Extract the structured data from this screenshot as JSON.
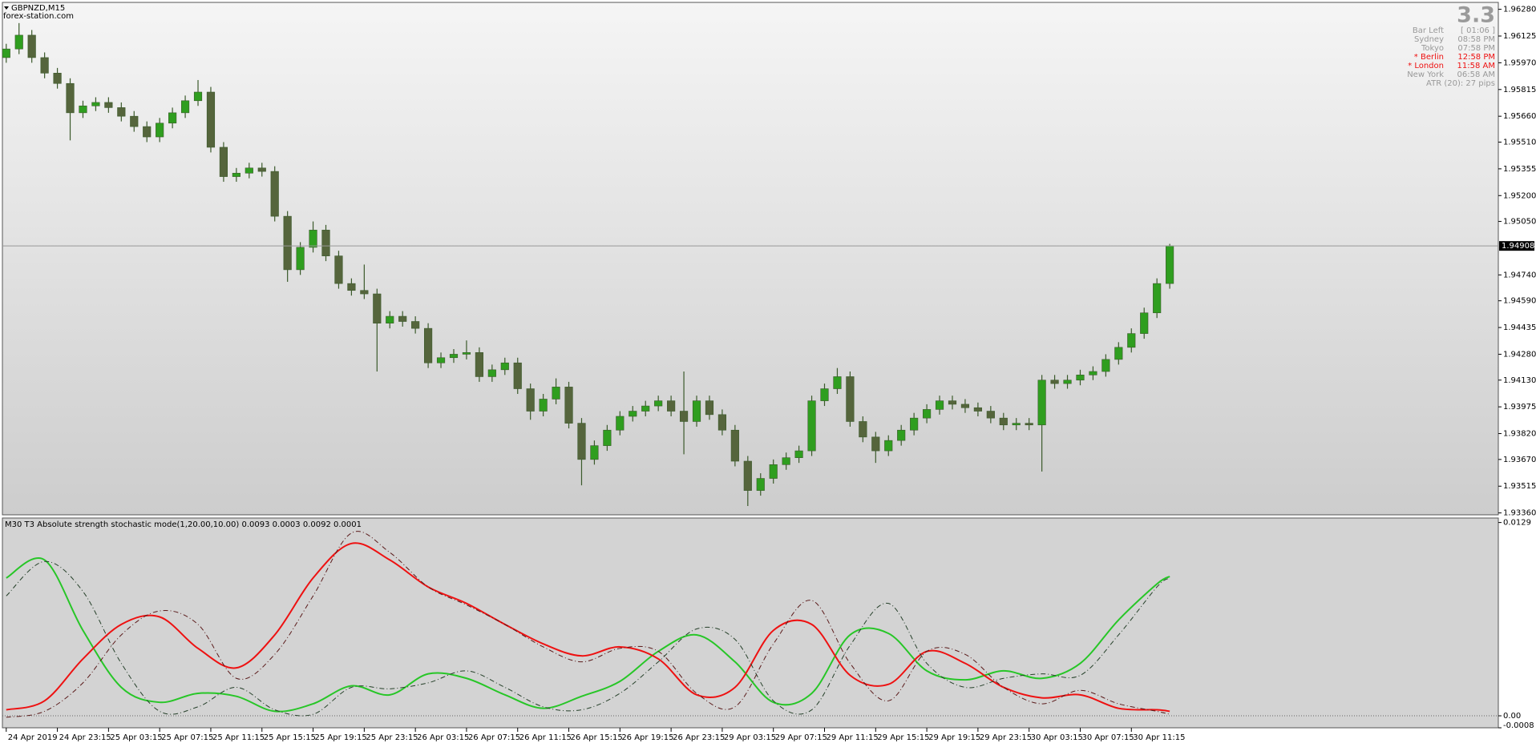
{
  "chart_data": [
    {
      "type": "candlestick",
      "title": "GBPNZD,M15",
      "subtitle": "forex-station.com",
      "open": [
        1.96,
        1.9605,
        1.9613,
        1.96,
        1.9591,
        1.9585,
        1.9568,
        1.9572,
        1.9574,
        1.9571,
        1.9566,
        1.956,
        1.9554,
        1.9562,
        1.9568,
        1.9575,
        1.958,
        1.9548,
        1.9531,
        1.9533,
        1.9536,
        1.9534,
        1.9508,
        1.9477,
        1.949,
        1.95,
        1.9485,
        1.9469,
        1.9465,
        1.9463,
        1.9446,
        1.945,
        1.9447,
        1.9443,
        1.9423,
        1.9426,
        1.9428,
        1.9429,
        1.9415,
        1.9419,
        1.9423,
        1.9408,
        1.9395,
        1.9402,
        1.9409,
        1.9388,
        1.9367,
        1.9375,
        1.9384,
        1.9392,
        1.9395,
        1.9398,
        1.9401,
        1.9395,
        1.9389,
        1.9401,
        1.9393,
        1.9384,
        1.9366,
        1.9349,
        1.9356,
        1.9364,
        1.9368,
        1.9372,
        1.9401,
        1.9408,
        1.9415,
        1.9389,
        1.938,
        1.9372,
        1.9378,
        1.9384,
        1.9391,
        1.9396,
        1.9401,
        1.9399,
        1.9397,
        1.9395,
        1.9391,
        1.9387,
        1.9388,
        1.9387,
        1.9413,
        1.9411,
        1.9413,
        1.9416,
        1.9418,
        1.9425,
        1.9432,
        1.944,
        1.9452,
        1.9469
      ],
      "high": [
        1.9608,
        1.962,
        1.9616,
        1.9603,
        1.9594,
        1.9588,
        1.9575,
        1.9577,
        1.9577,
        1.9574,
        1.9569,
        1.9563,
        1.9565,
        1.9571,
        1.9578,
        1.9587,
        1.9583,
        1.9551,
        1.9536,
        1.9539,
        1.9539,
        1.9537,
        1.9511,
        1.9493,
        1.9505,
        1.9503,
        1.9488,
        1.9472,
        1.948,
        1.9466,
        1.9453,
        1.9453,
        1.945,
        1.9446,
        1.9429,
        1.9431,
        1.9436,
        1.9432,
        1.9422,
        1.9426,
        1.9426,
        1.9411,
        1.9405,
        1.9414,
        1.9412,
        1.9391,
        1.9378,
        1.9387,
        1.9395,
        1.9398,
        1.9401,
        1.9404,
        1.9404,
        1.9418,
        1.9404,
        1.9404,
        1.9396,
        1.9387,
        1.9369,
        1.9359,
        1.9367,
        1.9371,
        1.9375,
        1.9404,
        1.9411,
        1.942,
        1.9418,
        1.9392,
        1.9383,
        1.9381,
        1.9387,
        1.9394,
        1.9399,
        1.9404,
        1.9404,
        1.9402,
        1.94,
        1.9398,
        1.9394,
        1.9391,
        1.9391,
        1.9416,
        1.9416,
        1.9416,
        1.9419,
        1.9421,
        1.9428,
        1.9435,
        1.9443,
        1.9455,
        1.9472,
        1.9492
      ],
      "low": [
        1.9597,
        1.9602,
        1.9597,
        1.9588,
        1.9582,
        1.9552,
        1.9565,
        1.9569,
        1.9568,
        1.9563,
        1.9557,
        1.9551,
        1.9551,
        1.9559,
        1.9565,
        1.9572,
        1.9545,
        1.9528,
        1.9528,
        1.953,
        1.9531,
        1.9505,
        1.947,
        1.9474,
        1.9487,
        1.9482,
        1.9466,
        1.9462,
        1.946,
        1.9418,
        1.9443,
        1.9444,
        1.944,
        1.942,
        1.942,
        1.9423,
        1.9425,
        1.9412,
        1.9412,
        1.9416,
        1.9405,
        1.939,
        1.9392,
        1.9399,
        1.9385,
        1.9352,
        1.9364,
        1.9372,
        1.9381,
        1.9389,
        1.9392,
        1.9395,
        1.9392,
        1.937,
        1.9386,
        1.939,
        1.9381,
        1.9363,
        1.934,
        1.9346,
        1.9353,
        1.9361,
        1.9365,
        1.9369,
        1.9398,
        1.9405,
        1.9386,
        1.9377,
        1.9365,
        1.9369,
        1.9375,
        1.9381,
        1.9388,
        1.9393,
        1.9396,
        1.9394,
        1.9392,
        1.9388,
        1.9384,
        1.9384,
        1.9384,
        1.936,
        1.9408,
        1.9408,
        1.941,
        1.9413,
        1.9415,
        1.9422,
        1.9429,
        1.9437,
        1.9449,
        1.9466
      ],
      "close": [
        1.9605,
        1.9613,
        1.96,
        1.9591,
        1.9585,
        1.9568,
        1.9572,
        1.9574,
        1.9571,
        1.9566,
        1.956,
        1.9554,
        1.9562,
        1.9568,
        1.9575,
        1.958,
        1.9548,
        1.9531,
        1.9533,
        1.9536,
        1.9534,
        1.9508,
        1.9477,
        1.949,
        1.95,
        1.9485,
        1.9469,
        1.9465,
        1.9463,
        1.9446,
        1.945,
        1.9447,
        1.9443,
        1.9423,
        1.9426,
        1.9428,
        1.9429,
        1.9415,
        1.9419,
        1.9423,
        1.9408,
        1.9395,
        1.9402,
        1.9409,
        1.9388,
        1.9367,
        1.9375,
        1.9384,
        1.9392,
        1.9395,
        1.9398,
        1.9401,
        1.9395,
        1.9389,
        1.9401,
        1.9393,
        1.9384,
        1.9366,
        1.9349,
        1.9356,
        1.9364,
        1.9368,
        1.9372,
        1.9401,
        1.9408,
        1.9415,
        1.9389,
        1.938,
        1.9372,
        1.9378,
        1.9384,
        1.9391,
        1.9396,
        1.9401,
        1.9399,
        1.9397,
        1.9395,
        1.9391,
        1.9387,
        1.9388,
        1.9387,
        1.9413,
        1.9411,
        1.9413,
        1.9416,
        1.9418,
        1.9425,
        1.9432,
        1.944,
        1.9452,
        1.9469,
        1.94908
      ],
      "bull_color": "#2f9e1f",
      "bear_color": "#55653c",
      "wick_color": "#3b5a2b",
      "last_price": 1.94908,
      "xlim": [
        -0.3,
        116.7
      ],
      "ylim": [
        1.93349,
        1.9632
      ],
      "yticks": [
        {
          "value": 1.9628,
          "label": "1.96280"
        },
        {
          "value": 1.96125,
          "label": "1.96125"
        },
        {
          "value": 1.9597,
          "label": "1.95970"
        },
        {
          "value": 1.95815,
          "label": "1.95815"
        },
        {
          "value": 1.9566,
          "label": "1.95660"
        },
        {
          "value": 1.9551,
          "label": "1.95510"
        },
        {
          "value": 1.95355,
          "label": "1.95355"
        },
        {
          "value": 1.952,
          "label": "1.95200"
        },
        {
          "value": 1.9505,
          "label": "1.95050"
        },
        {
          "value": 1.9474,
          "label": "1.94740"
        },
        {
          "value": 1.9459,
          "label": "1.94590"
        },
        {
          "value": 1.94435,
          "label": "1.94435"
        },
        {
          "value": 1.9428,
          "label": "1.94280"
        },
        {
          "value": 1.9413,
          "label": "1.94130"
        },
        {
          "value": 1.93975,
          "label": "1.93975"
        },
        {
          "value": 1.9382,
          "label": "1.93820"
        },
        {
          "value": 1.9367,
          "label": "1.93670"
        },
        {
          "value": 1.93515,
          "label": "1.93515"
        },
        {
          "value": 1.9336,
          "label": "1.93360"
        }
      ]
    },
    {
      "type": "line",
      "title": "M30 T3 Absolute strength stochastic mode(1,20.00,10.00) 0.0093 0.0003 0.0092 0.0001",
      "x": [
        0,
        3,
        6,
        9,
        12,
        15,
        18,
        21,
        24,
        27,
        30,
        33,
        36,
        39,
        42,
        45,
        48,
        51,
        54,
        57,
        60,
        63,
        66,
        69,
        72,
        75,
        78,
        81,
        84,
        87,
        90,
        91
      ],
      "series": [
        {
          "color": "#27c627",
          "dash": false,
          "values": [
            0.0092,
            0.0104,
            0.0057,
            0.0019,
            0.0009,
            0.0015,
            0.0013,
            0.0003,
            0.0008,
            0.002,
            0.0014,
            0.0028,
            0.0025,
            0.0014,
            0.0005,
            0.0013,
            0.0023,
            0.0043,
            0.0054,
            0.0036,
            0.0009,
            0.0015,
            0.0054,
            0.0055,
            0.003,
            0.0024,
            0.003,
            0.0025,
            0.0035,
            0.0064,
            0.0088,
            0.0093
          ]
        },
        {
          "color": "#ee1111",
          "dash": false,
          "values": [
            0.0004,
            0.001,
            0.0038,
            0.0061,
            0.0066,
            0.0045,
            0.0032,
            0.0054,
            0.0092,
            0.0115,
            0.0104,
            0.0086,
            0.0075,
            0.0061,
            0.0048,
            0.004,
            0.0046,
            0.0038,
            0.0014,
            0.0019,
            0.0057,
            0.0061,
            0.0027,
            0.0021,
            0.0043,
            0.0035,
            0.0019,
            0.0012,
            0.0014,
            0.0005,
            0.0004,
            0.0003
          ]
        },
        {
          "color": "#26402a",
          "dash": true,
          "values": [
            0.008,
            0.0103,
            0.0083,
            0.0035,
            0.0003,
            0.0006,
            0.0019,
            0.0004,
            0.0001,
            0.0019,
            0.0018,
            0.0022,
            0.003,
            0.0019,
            0.0006,
            0.0004,
            0.0015,
            0.0036,
            0.0058,
            0.0051,
            0.001,
            0.0004,
            0.0047,
            0.0075,
            0.0035,
            0.0019,
            0.0025,
            0.0028,
            0.0027,
            0.0054,
            0.0086,
            0.0092
          ]
        },
        {
          "color": "#5a1a1a",
          "dash": true,
          "values": [
            -0.0001,
            0.0003,
            0.0022,
            0.0054,
            0.007,
            0.0061,
            0.0025,
            0.0041,
            0.008,
            0.0122,
            0.0109,
            0.0086,
            0.0074,
            0.0061,
            0.0046,
            0.0036,
            0.0045,
            0.0043,
            0.0015,
            0.0006,
            0.0048,
            0.0077,
            0.0035,
            0.001,
            0.0043,
            0.0041,
            0.0019,
            0.0008,
            0.0017,
            0.0008,
            0.0003,
            0.0001
          ]
        }
      ],
      "levels": [
        0
      ],
      "xlim": [
        -0.3,
        116.7
      ],
      "ylim": [
        -0.0008,
        0.0132
      ],
      "yticks": [
        0.0129,
        {
          "value": 0,
          "label": "0.00"
        },
        -0.0008
      ],
      "xticks": [
        {
          "value": 0,
          "label": "24 Apr 2019"
        },
        {
          "value": 4,
          "label": "24 Apr 23:15"
        },
        {
          "value": 8,
          "label": "25 Apr 03:15"
        },
        {
          "value": 12,
          "label": "25 Apr 07:15"
        },
        {
          "value": 16,
          "label": "25 Apr 11:15"
        },
        {
          "value": 20,
          "label": "25 Apr 15:15"
        },
        {
          "value": 24,
          "label": "25 Apr 19:15"
        },
        {
          "value": 28,
          "label": "25 Apr 23:15"
        },
        {
          "value": 32,
          "label": "26 Apr 03:15"
        },
        {
          "value": 36,
          "label": "26 Apr 07:15"
        },
        {
          "value": 40,
          "label": "26 Apr 11:15"
        },
        {
          "value": 44,
          "label": "26 Apr 15:15"
        },
        {
          "value": 48,
          "label": "26 Apr 19:15"
        },
        {
          "value": 52,
          "label": "26 Apr 23:15"
        },
        {
          "value": 56,
          "label": "29 Apr 03:15"
        },
        {
          "value": 60,
          "label": "29 Apr 07:15"
        },
        {
          "value": 64,
          "label": "29 Apr 11:15"
        },
        {
          "value": 68,
          "label": "29 Apr 15:15"
        },
        {
          "value": 72,
          "label": "29 Apr 19:15"
        },
        {
          "value": 76,
          "label": "29 Apr 23:15"
        },
        {
          "value": 80,
          "label": "30 Apr 03:15"
        },
        {
          "value": 84,
          "label": "30 Apr 07:15"
        },
        {
          "value": 88,
          "label": "30 Apr 11:15"
        }
      ]
    }
  ],
  "info": {
    "big_value": "3.3",
    "rows": [
      {
        "label": "Bar Left",
        "value": "[ 01:06 ]",
        "color": "#999999"
      },
      {
        "label": "Sydney",
        "value": "08:58 PM",
        "color": "#999999"
      },
      {
        "label": "Tokyo",
        "value": "07:58 PM",
        "color": "#999999"
      },
      {
        "label": "* Berlin",
        "value": "12:58 PM",
        "color": "#ee1111"
      },
      {
        "label": "* London",
        "value": "11:58 AM",
        "color": "#ee1111"
      },
      {
        "label": "New York",
        "value": "06:58 AM",
        "color": "#999999"
      }
    ],
    "atr": "ATR (20): 27 pips"
  }
}
